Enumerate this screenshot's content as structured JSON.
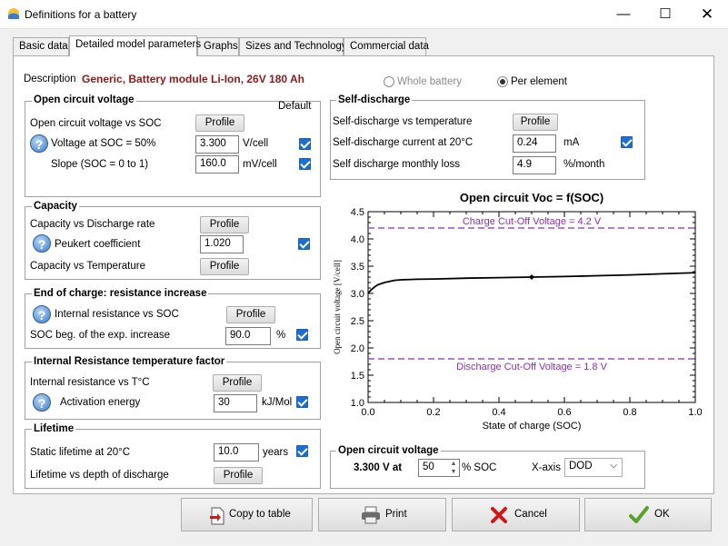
{
  "window": {
    "title": "Definitions for a battery",
    "minimize_glyph": "—",
    "maximize_glyph": "☐",
    "close_glyph": "✕"
  },
  "tabs": [
    {
      "label": "Basic data"
    },
    {
      "label": "Detailed model parameters"
    },
    {
      "label": "Graphs"
    },
    {
      "label": "Sizes and Technology"
    },
    {
      "label": "Commercial data"
    }
  ],
  "description": {
    "label": "Description",
    "value": "Generic,  Battery module Li-Ion, 26V 180 Ah"
  },
  "mode": {
    "whole_battery": "Whole battery",
    "per_element": "Per element",
    "selected": "Per element"
  },
  "ocv_group": {
    "title": "Open circuit voltage",
    "default_label": "Default",
    "ocv_vs_soc_label": "Open circuit voltage vs SOC",
    "profile_label": "Profile",
    "voltage_label": "Voltage at SOC = 50%",
    "voltage_value": "3.300",
    "voltage_unit": "V/cell",
    "voltage_default_checked": true,
    "slope_label": "Slope (SOC = 0 to 1)",
    "slope_value": "160.0",
    "slope_unit": "mV/cell",
    "slope_default_checked": true
  },
  "capacity_group": {
    "title": "Capacity",
    "discharge_rate_label": "Capacity vs Discharge rate",
    "profile_label": "Profile",
    "peukert_label": "Peukert coefficient",
    "peukert_value": "1.020",
    "peukert_checked": true,
    "temperature_label": "Capacity vs Temperature"
  },
  "eoc_group": {
    "title": "End of charge: resistance increase",
    "ir_vs_soc_label": "Internal resistance vs SOC",
    "profile_label": "Profile",
    "soc_beg_label": "SOC beg. of the exp. increase",
    "soc_beg_value": "90.0",
    "soc_beg_unit": "%",
    "soc_beg_checked": true
  },
  "irt_group": {
    "title": "Internal Resistance temperature factor",
    "ir_vs_t_label": "Internal resistance vs T°C",
    "profile_label": "Profile",
    "activation_label": "Activation energy",
    "activation_value": "30",
    "activation_unit": "kJ/Mol",
    "activation_checked": true
  },
  "lifetime_group": {
    "title": "Lifetime",
    "static_label": "Static lifetime at 20°C",
    "static_value": "10.0",
    "static_unit": "years",
    "static_checked": true,
    "dod_label": "Lifetime vs depth of discharge",
    "profile_label": "Profile"
  },
  "selfdischarge_group": {
    "title": "Self-discharge",
    "vs_temp_label": "Self-discharge vs temperature",
    "profile_label": "Profile",
    "current_label": "Self-discharge current at 20°C",
    "current_value": "0.24",
    "current_unit": "mA",
    "current_checked": true,
    "monthly_label": "Self discharge monthly loss",
    "monthly_value": "4.9",
    "monthly_unit": "%/month"
  },
  "chart_data": {
    "type": "line",
    "title": "Open circuit Voc = f(SOC)",
    "xlabel": "State of charge (SOC)",
    "ylabel": "Open circuit voltage  [V/cell]",
    "xlim": [
      0,
      1
    ],
    "ylim": [
      1,
      4.5
    ],
    "x_ticks": [
      "0.0",
      "0.2",
      "0.4",
      "0.6",
      "0.8",
      "1.0"
    ],
    "y_ticks": [
      "1.0",
      "1.5",
      "2.0",
      "2.5",
      "3.0",
      "3.5",
      "4.0",
      "4.5"
    ],
    "series": [
      {
        "x": [
          0,
          0.01,
          0.02,
          0.03,
          0.05,
          0.08,
          0.1,
          0.15,
          0.2,
          0.3,
          0.4,
          0.5,
          0.6,
          0.7,
          0.8,
          0.9,
          1.0
        ],
        "values": [
          3.0,
          3.07,
          3.12,
          3.16,
          3.2,
          3.24,
          3.25,
          3.26,
          3.265,
          3.28,
          3.29,
          3.3,
          3.31,
          3.325,
          3.34,
          3.36,
          3.38
        ]
      }
    ],
    "marker": {
      "x": 0.5,
      "y": 3.3
    },
    "reference_lines": [
      {
        "y": 4.2,
        "label": "Charge Cut-Off Voltage = 4.2 V",
        "color": "#8b2fb0"
      },
      {
        "y": 1.8,
        "label": "Discharge Cut-Off Voltage = 1.8 V",
        "color": "#8b2fb0"
      }
    ],
    "grid": false
  },
  "ocv_bottom": {
    "title": "Open circuit voltage",
    "voltage_text": "3.300 V at",
    "soc_value": "50",
    "soc_unit": "% SOC",
    "xaxis_label": "X-axis",
    "xaxis_value": "DOD"
  },
  "buttons": {
    "copy": "Copy to table",
    "print": "Print",
    "cancel": "Cancel",
    "ok": "OK"
  },
  "colors": {
    "description_text": "#8b1a1a",
    "checkbox": "#1c6fd0",
    "cutoff_line": "#8b2fb0"
  }
}
